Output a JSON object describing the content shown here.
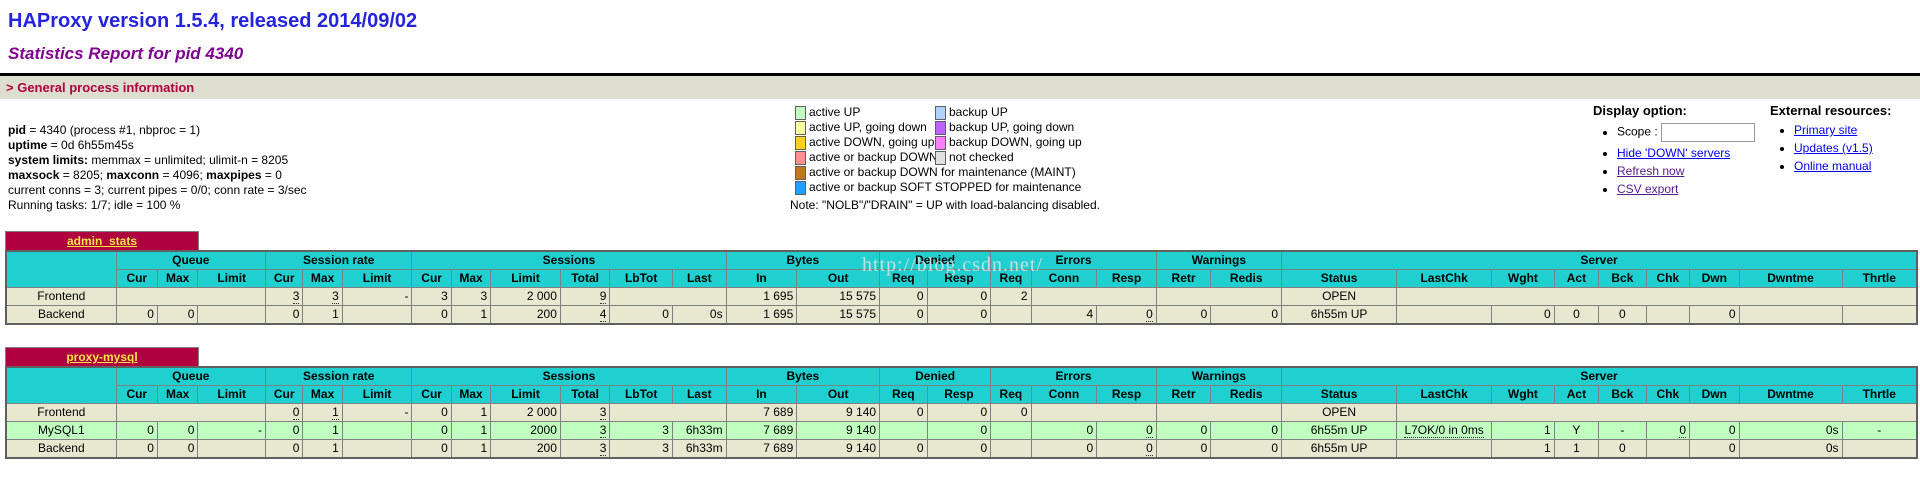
{
  "header": {
    "title": "HAProxy version 1.5.4, released 2014/09/02",
    "subtitle": "Statistics Report for pid 4340",
    "section": "> General process information"
  },
  "process_info": {
    "lines": [
      {
        "segments": [
          {
            "t": "pid",
            "b": true
          },
          {
            "t": " = 4340 (process #1, nbproc = 1)"
          }
        ]
      },
      {
        "segments": [
          {
            "t": "uptime",
            "b": true
          },
          {
            "t": " = 0d 6h55m45s"
          }
        ]
      },
      {
        "segments": [
          {
            "t": "system limits:",
            "b": true
          },
          {
            "t": " memmax = unlimited; ulimit-n = 8205"
          }
        ]
      },
      {
        "segments": [
          {
            "t": "maxsock",
            "b": true
          },
          {
            "t": " = 8205; "
          },
          {
            "t": "maxconn",
            "b": true
          },
          {
            "t": " = 4096; "
          },
          {
            "t": "maxpipes",
            "b": true
          },
          {
            "t": " = 0"
          }
        ]
      },
      {
        "segments": [
          {
            "t": "current conns = 3; current pipes = 0/0; conn rate = 3/sec"
          }
        ]
      },
      {
        "segments": [
          {
            "t": "Running tasks: 1/7; idle = 100 %"
          }
        ]
      }
    ]
  },
  "legend": {
    "items_left": [
      {
        "label": "active UP",
        "color": "#c0ffc0"
      },
      {
        "label": "active UP, going down",
        "color": "#ffffa0"
      },
      {
        "label": "active DOWN, going up",
        "color": "#ffd020"
      },
      {
        "label": "active or backup DOWN",
        "color": "#ff9090"
      },
      {
        "label": "active or backup DOWN for maintenance (MAINT)",
        "color": "#c07820"
      },
      {
        "label": "active or backup SOFT STOPPED for maintenance",
        "color": "#20a0ff"
      }
    ],
    "items_right": [
      {
        "label": "backup UP",
        "color": "#b0d0ff"
      },
      {
        "label": "backup UP, going down",
        "color": "#c060ff"
      },
      {
        "label": "backup DOWN, going up",
        "color": "#ff80ff"
      },
      {
        "label": "not checked",
        "color": "#e0e0e0"
      }
    ],
    "note": "Note: \"NOLB\"/\"DRAIN\" = UP with load-balancing disabled."
  },
  "display_option": {
    "heading": "Display option:",
    "scope_label": "Scope :",
    "scope_value": "",
    "links": [
      {
        "label": "Hide 'DOWN' servers",
        "visited": false
      },
      {
        "label": "Refresh now",
        "visited": true
      },
      {
        "label": "CSV export",
        "visited": true
      }
    ]
  },
  "external_resources": {
    "heading": "External resources:",
    "links": [
      {
        "label": "Primary site",
        "visited": false
      },
      {
        "label": "Updates (v1.5)",
        "visited": false
      },
      {
        "label": "Online manual",
        "visited": false
      }
    ]
  },
  "watermark": "http://blog.csdn.net/",
  "colors": {
    "header_cyan": "#20d0d0",
    "proxy_title_bg": "#b00040",
    "proxy_title_text": "#f5e642",
    "row_beige": "#e8e8d0",
    "row_active_up": "#c0ffc0",
    "section_text": "#b00040",
    "section_bg": "#ddddd0"
  },
  "stats_tables": [
    {
      "title": "admin_stats",
      "col_groups": [
        {
          "label": "",
          "span": 1,
          "rowspan2": true
        },
        {
          "label": "Queue",
          "span": 3
        },
        {
          "label": "Session rate",
          "span": 3
        },
        {
          "label": "Sessions",
          "span": 6
        },
        {
          "label": "Bytes",
          "span": 2
        },
        {
          "label": "Denied",
          "span": 2
        },
        {
          "label": "Errors",
          "span": 3
        },
        {
          "label": "Warnings",
          "span": 2
        },
        {
          "label": "Server",
          "span": 9
        }
      ],
      "sub_columns": [
        "Cur",
        "Max",
        "Limit",
        "Cur",
        "Max",
        "Limit",
        "Cur",
        "Max",
        "Limit",
        "Total",
        "LbTot",
        "Last",
        "In",
        "Out",
        "Req",
        "Resp",
        "Req",
        "Conn",
        "Resp",
        "Retr",
        "Redis",
        "Status",
        "LastChk",
        "Wght",
        "Act",
        "Bck",
        "Chk",
        "Dwn",
        "Dwntme",
        "Thrtle"
      ],
      "rows": [
        {
          "label": "Frontend",
          "style": "frontend",
          "cells": [
            {
              "v": "",
              "cs": 3
            },
            {
              "v": "3",
              "tip": true
            },
            {
              "v": "3",
              "tip": true
            },
            {
              "v": "-"
            },
            {
              "v": "3"
            },
            {
              "v": "3"
            },
            {
              "v": "2 000"
            },
            {
              "v": "9",
              "tip": true
            },
            {
              "v": "",
              "cs": 2
            },
            {
              "v": "1 695"
            },
            {
              "v": "15 575"
            },
            {
              "v": "0"
            },
            {
              "v": "0"
            },
            {
              "v": "2"
            },
            {
              "v": "",
              "cs": 2
            },
            {
              "v": "",
              "cs": 2
            },
            {
              "v": "OPEN",
              "ac": true
            },
            {
              "v": "",
              "cs": 8
            }
          ]
        },
        {
          "label": "Backend",
          "style": "backend",
          "cells": [
            {
              "v": "0"
            },
            {
              "v": "0"
            },
            {
              "v": ""
            },
            {
              "v": "0"
            },
            {
              "v": "1"
            },
            {
              "v": ""
            },
            {
              "v": "0"
            },
            {
              "v": "1"
            },
            {
              "v": "200"
            },
            {
              "v": "4",
              "tip": true
            },
            {
              "v": "0"
            },
            {
              "v": "0s"
            },
            {
              "v": "1 695"
            },
            {
              "v": "15 575"
            },
            {
              "v": "0"
            },
            {
              "v": "0"
            },
            {
              "v": ""
            },
            {
              "v": "4"
            },
            {
              "v": "0",
              "tip": true
            },
            {
              "v": "0"
            },
            {
              "v": "0"
            },
            {
              "v": "6h55m UP",
              "ac": true
            },
            {
              "v": ""
            },
            {
              "v": "0"
            },
            {
              "v": "0",
              "ac": true
            },
            {
              "v": "0",
              "ac": true
            },
            {
              "v": ""
            },
            {
              "v": "0"
            },
            {
              "v": ""
            },
            {
              "v": ""
            }
          ]
        }
      ]
    },
    {
      "title": "proxy-mysql",
      "col_groups": [
        {
          "label": "",
          "span": 1,
          "rowspan2": true
        },
        {
          "label": "Queue",
          "span": 3
        },
        {
          "label": "Session rate",
          "span": 3
        },
        {
          "label": "Sessions",
          "span": 6
        },
        {
          "label": "Bytes",
          "span": 2
        },
        {
          "label": "Denied",
          "span": 2
        },
        {
          "label": "Errors",
          "span": 3
        },
        {
          "label": "Warnings",
          "span": 2
        },
        {
          "label": "Server",
          "span": 9
        }
      ],
      "sub_columns": [
        "Cur",
        "Max",
        "Limit",
        "Cur",
        "Max",
        "Limit",
        "Cur",
        "Max",
        "Limit",
        "Total",
        "LbTot",
        "Last",
        "In",
        "Out",
        "Req",
        "Resp",
        "Req",
        "Conn",
        "Resp",
        "Retr",
        "Redis",
        "Status",
        "LastChk",
        "Wght",
        "Act",
        "Bck",
        "Chk",
        "Dwn",
        "Dwntme",
        "Thrtle"
      ],
      "rows": [
        {
          "label": "Frontend",
          "style": "frontend",
          "cells": [
            {
              "v": "",
              "cs": 3
            },
            {
              "v": "0",
              "tip": true
            },
            {
              "v": "1",
              "tip": true
            },
            {
              "v": "-"
            },
            {
              "v": "0"
            },
            {
              "v": "1"
            },
            {
              "v": "2 000"
            },
            {
              "v": "3",
              "tip": true
            },
            {
              "v": "",
              "cs": 2
            },
            {
              "v": "7 689"
            },
            {
              "v": "9 140"
            },
            {
              "v": "0"
            },
            {
              "v": "0"
            },
            {
              "v": "0"
            },
            {
              "v": "",
              "cs": 2
            },
            {
              "v": "",
              "cs": 2
            },
            {
              "v": "OPEN",
              "ac": true
            },
            {
              "v": "",
              "cs": 8
            }
          ]
        },
        {
          "label": "MySQL1",
          "style": "active_up",
          "cells": [
            {
              "v": "0"
            },
            {
              "v": "0"
            },
            {
              "v": "-"
            },
            {
              "v": "0"
            },
            {
              "v": "1"
            },
            {
              "v": ""
            },
            {
              "v": "0"
            },
            {
              "v": "1"
            },
            {
              "v": "2000"
            },
            {
              "v": "3",
              "tip": true
            },
            {
              "v": "3"
            },
            {
              "v": "6h33m"
            },
            {
              "v": "7 689"
            },
            {
              "v": "9 140"
            },
            {
              "v": ""
            },
            {
              "v": "0"
            },
            {
              "v": ""
            },
            {
              "v": "0"
            },
            {
              "v": "0",
              "tip": true
            },
            {
              "v": "0"
            },
            {
              "v": "0"
            },
            {
              "v": "6h55m UP",
              "ac": true
            },
            {
              "v": "L7OK/0 in 0ms",
              "ac": true,
              "tip": true
            },
            {
              "v": "1"
            },
            {
              "v": "Y",
              "ac": true
            },
            {
              "v": "-",
              "ac": true
            },
            {
              "v": "0",
              "tip": true
            },
            {
              "v": "0"
            },
            {
              "v": "0s"
            },
            {
              "v": "-",
              "ac": true
            }
          ]
        },
        {
          "label": "Backend",
          "style": "backend",
          "cells": [
            {
              "v": "0"
            },
            {
              "v": "0"
            },
            {
              "v": ""
            },
            {
              "v": "0"
            },
            {
              "v": "1"
            },
            {
              "v": ""
            },
            {
              "v": "0"
            },
            {
              "v": "1"
            },
            {
              "v": "200"
            },
            {
              "v": "3",
              "tip": true
            },
            {
              "v": "3"
            },
            {
              "v": "6h33m"
            },
            {
              "v": "7 689"
            },
            {
              "v": "9 140"
            },
            {
              "v": "0"
            },
            {
              "v": "0"
            },
            {
              "v": ""
            },
            {
              "v": "0"
            },
            {
              "v": "0",
              "tip": true
            },
            {
              "v": "0"
            },
            {
              "v": "0"
            },
            {
              "v": "6h55m UP",
              "ac": true
            },
            {
              "v": ""
            },
            {
              "v": "1"
            },
            {
              "v": "1",
              "ac": true
            },
            {
              "v": "0",
              "ac": true
            },
            {
              "v": ""
            },
            {
              "v": "0"
            },
            {
              "v": "0s"
            },
            {
              "v": ""
            }
          ]
        }
      ]
    }
  ]
}
